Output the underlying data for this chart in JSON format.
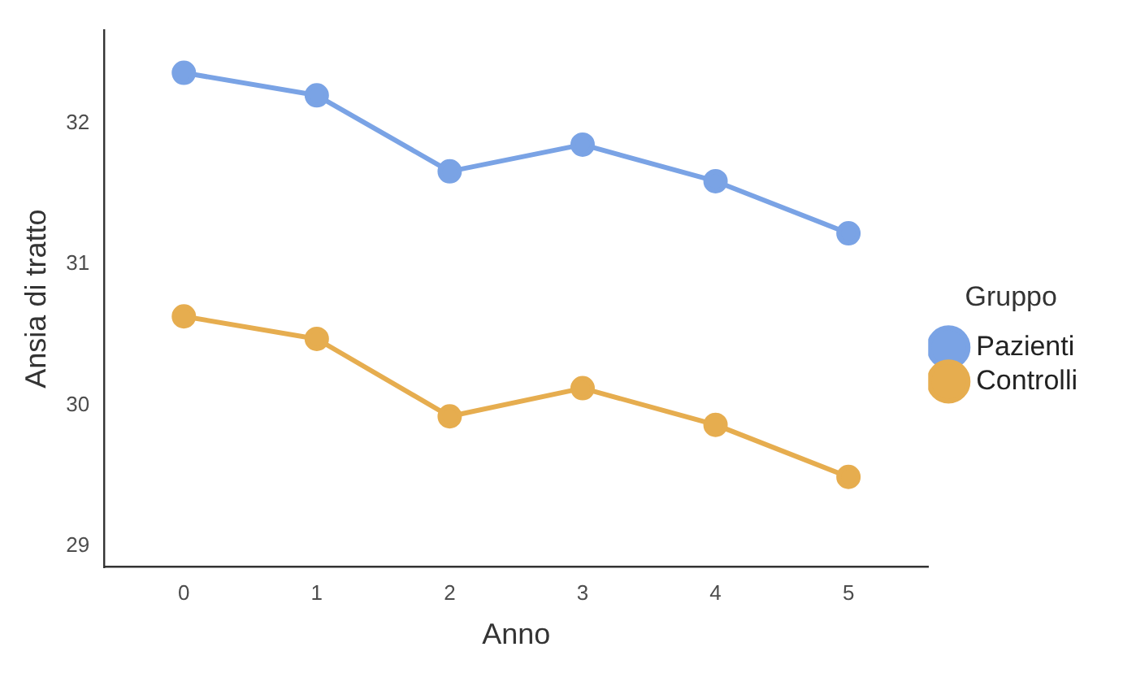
{
  "chart_data": {
    "type": "line",
    "xlabel": "Anno",
    "ylabel": "Ansia di tratto",
    "legend_title": "Gruppo",
    "x": [
      0,
      1,
      2,
      3,
      4,
      5
    ],
    "series": [
      {
        "name": "Pazienti",
        "color": "#7aa3e5",
        "values": [
          32.36,
          32.2,
          31.66,
          31.85,
          31.59,
          31.22
        ]
      },
      {
        "name": "Controlli",
        "color": "#e6ad4f",
        "values": [
          30.63,
          30.47,
          29.92,
          30.12,
          29.86,
          29.49
        ]
      }
    ],
    "xlim": [
      -0.6,
      5.6
    ],
    "xticks": [
      0,
      1,
      2,
      3,
      4,
      5
    ],
    "ylim": [
      28.85,
      32.66
    ],
    "yticks": [
      29,
      30,
      31,
      32
    ],
    "grid": false,
    "legend": "right",
    "marker": "circle",
    "line_style": "solid"
  }
}
